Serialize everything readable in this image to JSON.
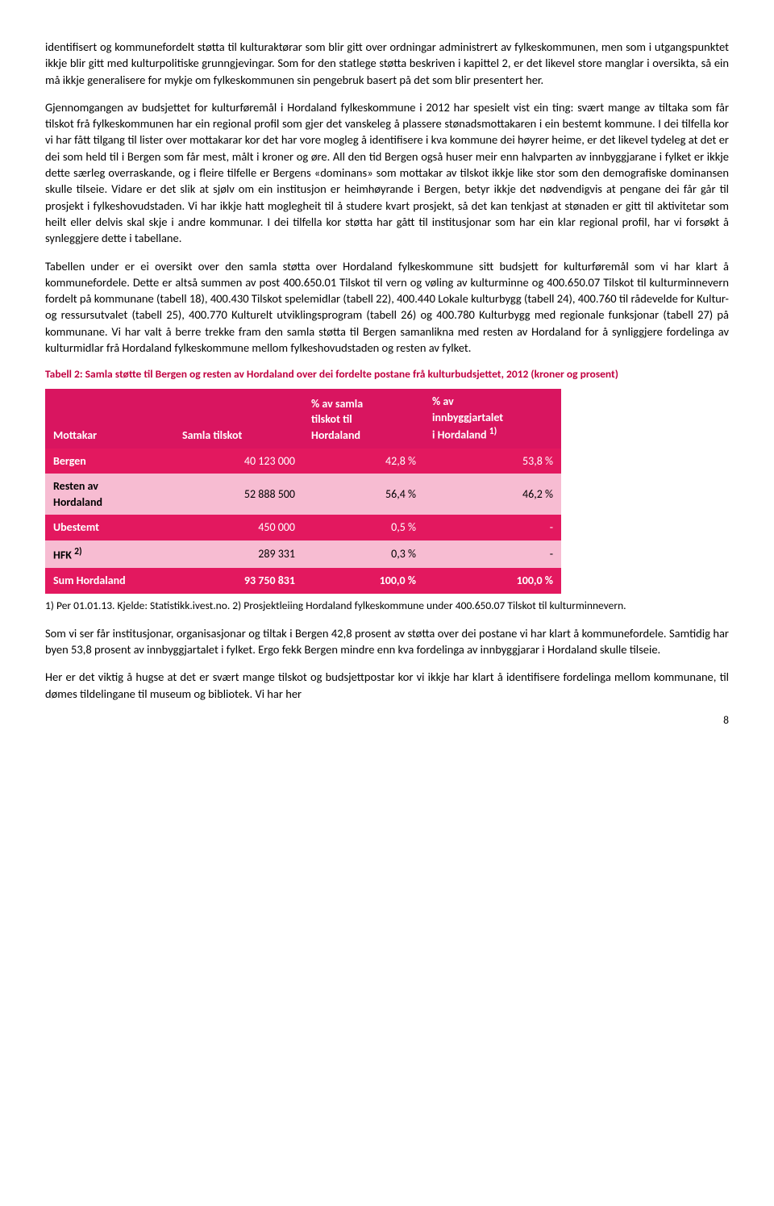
{
  "paragraphs": {
    "p1": "identifisert og kommunefordelt støtta til kulturaktørar som blir gitt over ordningar administrert av fylkeskommunen, men som i utgangspunktet ikkje blir gitt med kulturpolitiske grunngjevingar. Som for den statlege støtta beskriven i kapittel 2, er det likevel store manglar i oversikta, så ein må ikkje generalisere for mykje om fylkeskommunen sin pengebruk basert på det som blir presentert her.",
    "p2": "Gjennomgangen av budsjettet for kulturføremål i Hordaland fylkeskommune i 2012 har spesielt vist ein ting: svært mange av tiltaka som får tilskot frå fylkeskommunen har ein regional profil som gjer det vanskeleg å plassere stønadsmottakaren i ein bestemt kommune. I dei tilfella kor vi har fått tilgang til lister over mottakarar kor det har vore mogleg å identifisere i kva kommune dei høyrer heime, er det likevel tydeleg at det er dei som held til i Bergen som får mest, målt i kroner og øre. All den tid Bergen også  huser meir enn halvparten av innbyggjarane i fylket er ikkje dette særleg overraskande, og i fleire tilfelle er Bergens «dominans» som mottakar av tilskot ikkje like stor som den demografiske dominansen skulle tilseie. Vidare er det slik at sjølv om ein institusjon er heimhøyrande i Bergen, betyr ikkje det nødvendigvis at pengane dei får går til prosjekt i fylkeshovudstaden. Vi har ikkje hatt moglegheit til å studere kvart prosjekt, så det  kan tenkjast at stønaden er gitt til aktivitetar som heilt eller delvis skal skje i andre kommunar. I dei tilfella kor støtta har gått til institusjonar som har ein klar regional profil, har vi forsøkt å synleggjere dette i tabellane.",
    "p3": "Tabellen under er ei oversikt over den samla støtta over Hordaland fylkeskommune sitt budsjett for kulturføremål som vi har klart å kommunefordele. Dette er altså summen av  post 400.650.01 Tilskot til vern og vøling av kulturminne og 400.650.07 Tilskot til kulturminnevern fordelt på kommunane (tabell 18), 400.430 Tilskot spelemidlar (tabell 22), 400.440 Lokale kulturbygg (tabell 24),  400.760 til rådevelde for Kultur- og ressursutvalet (tabell 25), 400.770 Kulturelt utviklingsprogram (tabell 26) og 400.780 Kulturbygg med regionale funksjonar (tabell 27) på kommunane. Vi har valt å berre trekke fram den samla støtta til Bergen samanlikna med resten av Hordaland for å synliggjere fordelinga av kulturmidlar frå Hordaland fylkeskommune mellom fylkeshovudstaden og resten av fylket.",
    "p4": "Som vi ser får institusjonar, organisasjonar og tiltak i Bergen 42,8 prosent av støtta over dei postane vi har klart å kommunefordele. Samtidig har byen 53,8 prosent av innbyggjartalet i fylket. Ergo fekk Bergen mindre enn kva fordelinga av innbyggjarar i Hordaland skulle tilseie.",
    "p5": "Her er det viktig å hugse at det er svært mange tilskot og budsjettpostar kor vi ikkje har klart å identifisere fordelinga mellom kommunane, til dømes tildelingane til museum og bibliotek. Vi har her"
  },
  "table": {
    "caption": "Tabell 2: Samla støtte til Bergen og resten av Hordaland over dei fordelte postane frå kulturbudsjettet, 2012 (kroner og prosent)",
    "columns": [
      "Mottakar",
      "Samla tilskot",
      "% av samla tilskot til Hordaland",
      "% av innbyggjartalet i Hordaland 1)"
    ],
    "header_sup": "1)",
    "rows": [
      {
        "label": "Bergen",
        "tilskot": "40 123 000",
        "pct_tilskot": "42,8 %",
        "pct_innb": "53,8 %"
      },
      {
        "label": "Resten av Hordaland",
        "tilskot": "52 888 500",
        "pct_tilskot": "56,4 %",
        "pct_innb": "46,2 %"
      },
      {
        "label": "Ubestemt",
        "tilskot": "450 000",
        "pct_tilskot": "0,5 %",
        "pct_innb": "-"
      },
      {
        "label": "HFK 2)",
        "tilskot": "289 331",
        "pct_tilskot": "0,3 %",
        "pct_innb": "-"
      },
      {
        "label": "Sum Hordaland",
        "tilskot": "93 750 831",
        "pct_tilskot": "100,0 %",
        "pct_innb": "100,0 %"
      }
    ],
    "row_colors": {
      "header": "#d91560",
      "odd": "#e3185f",
      "even": "#f7bcd2",
      "sum": "#e3185f"
    },
    "text_colors": {
      "header": "#ffffff",
      "odd": "#ffffff",
      "even": "#000000",
      "sum": "#ffffff"
    },
    "col_widths": [
      "140px",
      "140px",
      "130px",
      "150px"
    ],
    "footnote": "1) Per 01.01.13. Kjelde: Statistikk.ivest.no. 2) Prosjektleiing Hordaland fylkeskommune under 400.650.07 Tilskot til kulturminnevern."
  },
  "page_number": "8"
}
